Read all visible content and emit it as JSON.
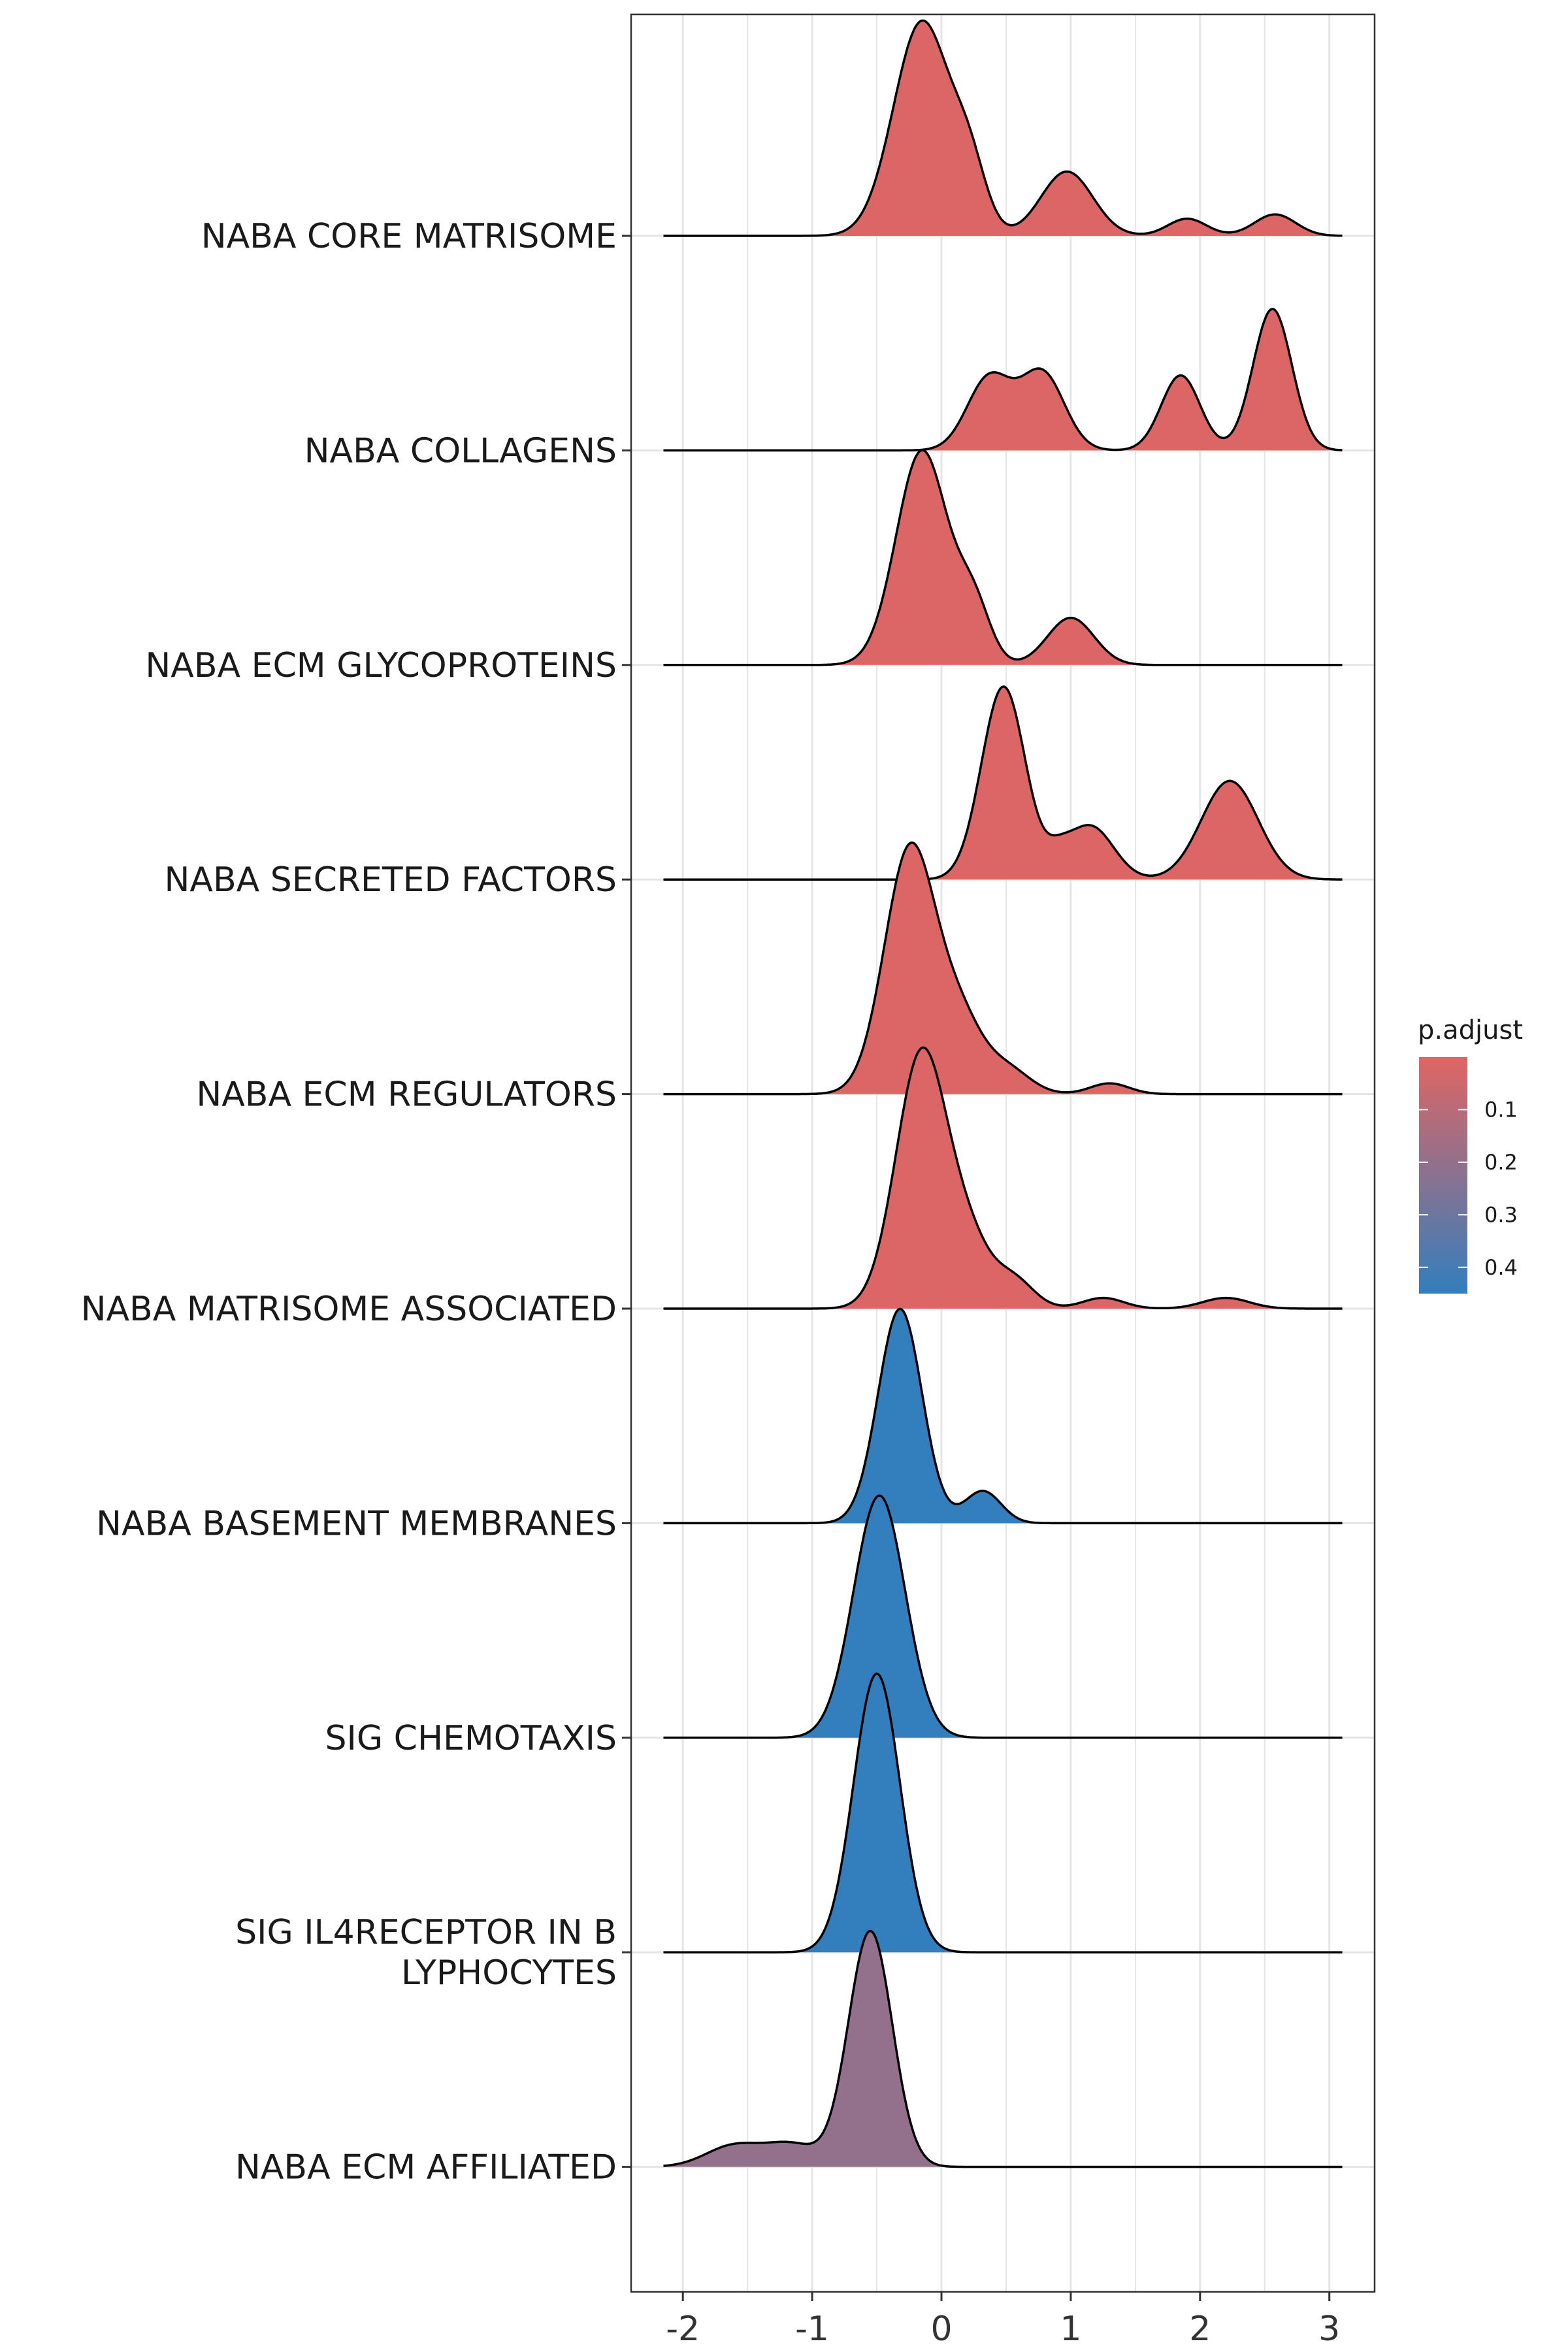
{
  "chart_data": {
    "type": "ridgeline",
    "title": "",
    "xlabel": "",
    "ylabel": "",
    "xlim": [
      -2.4,
      3.35
    ],
    "x_ticks": [
      -2,
      -1,
      0,
      1,
      2,
      3
    ],
    "x_tick_labels": [
      "-2",
      "-1",
      "0",
      "1",
      "2",
      "3"
    ],
    "grid": true,
    "x_grid": [
      -2,
      -1.5,
      -1,
      -0.5,
      0,
      0.5,
      1,
      1.5,
      2,
      2.5,
      3
    ],
    "ridge_x_range": [
      -2.15,
      3.1
    ],
    "height_scale": 1.0,
    "categories_top_to_bottom": [
      {
        "label": [
          "NABA CORE MATRISOME"
        ],
        "p_adjust": 0.01,
        "components": [
          [
            1.0,
            -0.15,
            0.22
          ],
          [
            0.26,
            0.22,
            0.13
          ],
          [
            0.3,
            0.97,
            0.2
          ],
          [
            0.08,
            1.9,
            0.15
          ],
          [
            0.1,
            2.58,
            0.16
          ]
        ]
      },
      {
        "label": [
          "NABA COLLAGENS"
        ],
        "p_adjust": 0.01,
        "components": [
          [
            0.34,
            0.37,
            0.17
          ],
          [
            0.36,
            0.78,
            0.17
          ],
          [
            0.35,
            1.85,
            0.15
          ],
          [
            0.66,
            2.56,
            0.15
          ]
        ]
      },
      {
        "label": [
          "NABA ECM GLYCOPROTEINS"
        ],
        "p_adjust": 0.01,
        "components": [
          [
            1.0,
            -0.15,
            0.2
          ],
          [
            0.26,
            0.25,
            0.13
          ],
          [
            0.22,
            1.0,
            0.18
          ]
        ]
      },
      {
        "label": [
          "NABA SECRETED FACTORS"
        ],
        "p_adjust": 0.01,
        "components": [
          [
            0.9,
            0.48,
            0.17
          ],
          [
            0.25,
            1.15,
            0.18
          ],
          [
            0.46,
            2.23,
            0.22
          ],
          [
            0.07,
            0.9,
            0.1
          ]
        ]
      },
      {
        "label": [
          "NABA ECM REGULATORS"
        ],
        "p_adjust": 0.01,
        "components": [
          [
            1.15,
            -0.24,
            0.2
          ],
          [
            0.3,
            0.15,
            0.17
          ],
          [
            0.12,
            0.5,
            0.18
          ],
          [
            0.05,
            1.3,
            0.15
          ]
        ]
      },
      {
        "label": [
          "NABA MATRISOME ASSOCIATED"
        ],
        "p_adjust": 0.01,
        "components": [
          [
            1.2,
            -0.15,
            0.2
          ],
          [
            0.25,
            0.22,
            0.16
          ],
          [
            0.14,
            0.55,
            0.16
          ],
          [
            0.05,
            1.25,
            0.16
          ],
          [
            0.05,
            2.2,
            0.18
          ]
        ]
      },
      {
        "label": [
          "NABA BASEMENT MEMBRANES"
        ],
        "p_adjust": 0.45,
        "components": [
          [
            1.0,
            -0.32,
            0.17
          ],
          [
            0.15,
            0.32,
            0.14
          ]
        ]
      },
      {
        "label": [
          "SIG CHEMOTAXIS"
        ],
        "p_adjust": 0.45,
        "components": [
          [
            1.13,
            -0.48,
            0.2
          ]
        ]
      },
      {
        "label": [
          "SIG IL4RECEPTOR IN B",
          "LYPHOCYTES"
        ],
        "p_adjust": 0.45,
        "components": [
          [
            1.3,
            -0.5,
            0.18
          ]
        ]
      },
      {
        "label": [
          "NABA ECM AFFILIATED"
        ],
        "p_adjust": 0.2,
        "components": [
          [
            1.1,
            -0.55,
            0.17
          ],
          [
            0.1,
            -1.6,
            0.22
          ],
          [
            0.1,
            -1.15,
            0.2
          ]
        ]
      }
    ],
    "legend": {
      "title": "p.adjust",
      "placement": "right",
      "ticks": [
        0.1,
        0.2,
        0.3,
        0.4
      ],
      "tick_labels": [
        "0.1",
        "0.2",
        "0.3",
        "0.4"
      ],
      "range": [
        0.0,
        0.45
      ],
      "low_color": "#E06563",
      "high_color": "#337EBD"
    },
    "colors": {
      "outline": "#000000",
      "grid": "#E5E5E5",
      "panel_border": "#333333"
    }
  }
}
